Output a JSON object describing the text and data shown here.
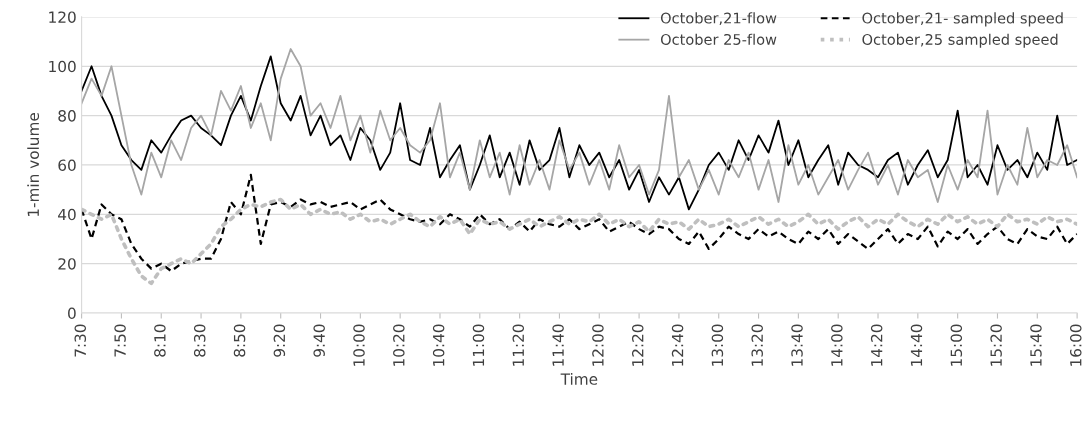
{
  "chart_data": {
    "type": "line",
    "xlabel": "Time",
    "ylabel": "1-min volume",
    "categories": [
      "7:30",
      null,
      null,
      null,
      "7:50",
      null,
      null,
      null,
      "8:10",
      null,
      null,
      null,
      "8:30",
      null,
      null,
      null,
      "8:50",
      null,
      null,
      null,
      "9:20",
      null,
      null,
      null,
      "9:40",
      null,
      null,
      null,
      "10:00",
      null,
      null,
      null,
      "10:20",
      null,
      null,
      null,
      "10:40",
      null,
      null,
      null,
      "11:00",
      null,
      null,
      null,
      "11:20",
      null,
      null,
      null,
      "11:40",
      null,
      null,
      null,
      "12:00",
      null,
      null,
      null,
      "12:20",
      null,
      null,
      null,
      "12:40",
      null,
      null,
      null,
      "13:00",
      null,
      null,
      null,
      "13:20",
      null,
      null,
      null,
      "13:40",
      null,
      null,
      null,
      "14:00",
      null,
      null,
      null,
      "14:20",
      null,
      null,
      null,
      "14:40",
      null,
      null,
      null,
      "15:00",
      null,
      null,
      null,
      "15:20",
      null,
      null,
      null,
      "15:40",
      null,
      null,
      null,
      "16:00"
    ],
    "ylim": [
      0,
      120
    ],
    "yticks": [
      0,
      20,
      40,
      60,
      80,
      100,
      120
    ],
    "grid": "y",
    "legend": "top right",
    "marker": "none",
    "series": [
      {
        "name": "October,21-flow",
        "color": "#000000",
        "line_style": "solid",
        "values": [
          90,
          100,
          88,
          80,
          68,
          62,
          58,
          70,
          65,
          72,
          78,
          80,
          75,
          72,
          68,
          80,
          88,
          78,
          92,
          104,
          85,
          78,
          88,
          72,
          80,
          68,
          72,
          62,
          75,
          70,
          58,
          65,
          85,
          62,
          60,
          75,
          55,
          62,
          68,
          50,
          60,
          72,
          55,
          65,
          52,
          70,
          58,
          62,
          75,
          55,
          68,
          60,
          65,
          55,
          62,
          50,
          58,
          45,
          55,
          48,
          55,
          42,
          50,
          60,
          65,
          58,
          70,
          62,
          72,
          65,
          78,
          60,
          70,
          55,
          62,
          68,
          52,
          65,
          60,
          58,
          55,
          62,
          65,
          52,
          60,
          66,
          55,
          62,
          82,
          55,
          60,
          52,
          68,
          58,
          62,
          55,
          65,
          58,
          80,
          60,
          62
        ]
      },
      {
        "name": "October 25-flow",
        "color": "#a6a6a6",
        "line_style": "solid",
        "values": [
          85,
          95,
          88,
          100,
          80,
          60,
          48,
          65,
          55,
          70,
          62,
          75,
          80,
          72,
          90,
          82,
          92,
          75,
          85,
          70,
          95,
          107,
          100,
          80,
          85,
          75,
          88,
          70,
          80,
          65,
          82,
          70,
          75,
          68,
          65,
          70,
          85,
          55,
          65,
          50,
          70,
          55,
          65,
          48,
          68,
          52,
          62,
          50,
          70,
          58,
          65,
          52,
          62,
          50,
          68,
          55,
          60,
          48,
          58,
          88,
          55,
          62,
          50,
          58,
          48,
          62,
          55,
          65,
          50,
          62,
          45,
          68,
          52,
          60,
          48,
          55,
          62,
          50,
          58,
          65,
          52,
          60,
          48,
          62,
          55,
          58,
          45,
          60,
          50,
          62,
          55,
          82,
          48,
          60,
          52,
          75,
          55,
          62,
          60,
          68,
          55
        ]
      },
      {
        "name": "October,21- sampled speed",
        "color": "#000000",
        "line_style": "dashed",
        "values": [
          42,
          30,
          44,
          40,
          38,
          28,
          22,
          18,
          20,
          17,
          20,
          21,
          22,
          22,
          30,
          45,
          40,
          56,
          28,
          44,
          45,
          43,
          46,
          44,
          45,
          43,
          44,
          45,
          42,
          44,
          46,
          42,
          40,
          38,
          37,
          38,
          36,
          40,
          38,
          35,
          40,
          36,
          38,
          34,
          37,
          33,
          38,
          36,
          35,
          38,
          34,
          36,
          38,
          33,
          35,
          37,
          34,
          32,
          35,
          34,
          30,
          28,
          33,
          26,
          30,
          35,
          32,
          30,
          34,
          31,
          33,
          30,
          28,
          33,
          30,
          34,
          28,
          32,
          29,
          26,
          30,
          34,
          28,
          32,
          30,
          35,
          27,
          33,
          30,
          34,
          28,
          32,
          35,
          30,
          28,
          34,
          31,
          30,
          35,
          28,
          32
        ]
      },
      {
        "name": "October,25 sampled speed",
        "color": "#bfbfbf",
        "line_style": "dotted",
        "values": [
          42,
          40,
          38,
          40,
          30,
          22,
          15,
          12,
          18,
          20,
          22,
          20,
          24,
          28,
          35,
          38,
          42,
          44,
          43,
          45,
          46,
          42,
          44,
          40,
          42,
          40,
          41,
          38,
          40,
          37,
          38,
          36,
          38,
          40,
          37,
          35,
          39,
          36,
          38,
          32,
          38,
          36,
          37,
          34,
          36,
          38,
          35,
          37,
          39,
          36,
          38,
          37,
          40,
          36,
          38,
          35,
          37,
          33,
          38,
          36,
          37,
          34,
          38,
          35,
          36,
          38,
          35,
          37,
          39,
          36,
          38,
          35,
          37,
          40,
          36,
          38,
          34,
          37,
          39,
          35,
          38,
          36,
          40,
          37,
          35,
          38,
          36,
          40,
          37,
          39,
          36,
          38,
          35,
          40,
          37,
          38,
          36,
          39,
          37,
          38,
          36
        ]
      }
    ]
  }
}
